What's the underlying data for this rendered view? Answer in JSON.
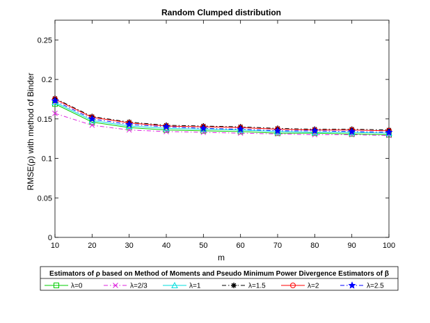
{
  "chart_data": {
    "type": "line",
    "title": "Random Clumped distribution",
    "xlabel": "m",
    "ylabel": "RMSE(ρ) with method of Binder",
    "x": [
      10,
      20,
      30,
      40,
      50,
      60,
      70,
      80,
      90,
      100
    ],
    "xlim": [
      10,
      100
    ],
    "ylim": [
      0,
      0.275
    ],
    "xticks": [
      "10",
      "20",
      "30",
      "40",
      "50",
      "60",
      "70",
      "80",
      "90",
      "100"
    ],
    "yticks": [
      "0",
      "0.05",
      "0.1",
      "0.15",
      "0.2",
      "0.25"
    ],
    "grid": false,
    "legend": {
      "title": "Estimators of ρ based on Method of Moments and Pseudo Minimum Power Divergence Estimators of  β",
      "placement": "bottom-outside"
    },
    "series": [
      {
        "name": "λ=0",
        "color": "#00cc00",
        "marker": "square",
        "dash": "solid",
        "values": [
          0.169,
          0.146,
          0.139,
          0.136,
          0.135,
          0.134,
          0.132,
          0.132,
          0.131,
          0.13
        ]
      },
      {
        "name": "λ=2/3",
        "color": "#dd22dd",
        "marker": "x",
        "dash": "dashdot",
        "values": [
          0.157,
          0.142,
          0.136,
          0.134,
          0.133,
          0.132,
          0.131,
          0.13,
          0.13,
          0.129
        ]
      },
      {
        "name": "λ=1",
        "color": "#00dddd",
        "marker": "triangle",
        "dash": "solid",
        "values": [
          0.171,
          0.148,
          0.141,
          0.138,
          0.137,
          0.136,
          0.134,
          0.133,
          0.133,
          0.132
        ]
      },
      {
        "name": "λ=1.5",
        "color": "#000000",
        "marker": "star6",
        "dash": "dashdot",
        "values": [
          0.176,
          0.153,
          0.146,
          0.142,
          0.141,
          0.14,
          0.138,
          0.137,
          0.137,
          0.136
        ]
      },
      {
        "name": "λ=2",
        "color": "#ff0000",
        "marker": "circle",
        "dash": "solid",
        "values": [
          0.175,
          0.152,
          0.145,
          0.141,
          0.14,
          0.139,
          0.137,
          0.136,
          0.136,
          0.135
        ]
      },
      {
        "name": "λ=2.5",
        "color": "#0000ff",
        "marker": "star5",
        "dash": "dashdot",
        "values": [
          0.173,
          0.15,
          0.143,
          0.14,
          0.138,
          0.137,
          0.135,
          0.135,
          0.134,
          0.133
        ]
      }
    ]
  }
}
